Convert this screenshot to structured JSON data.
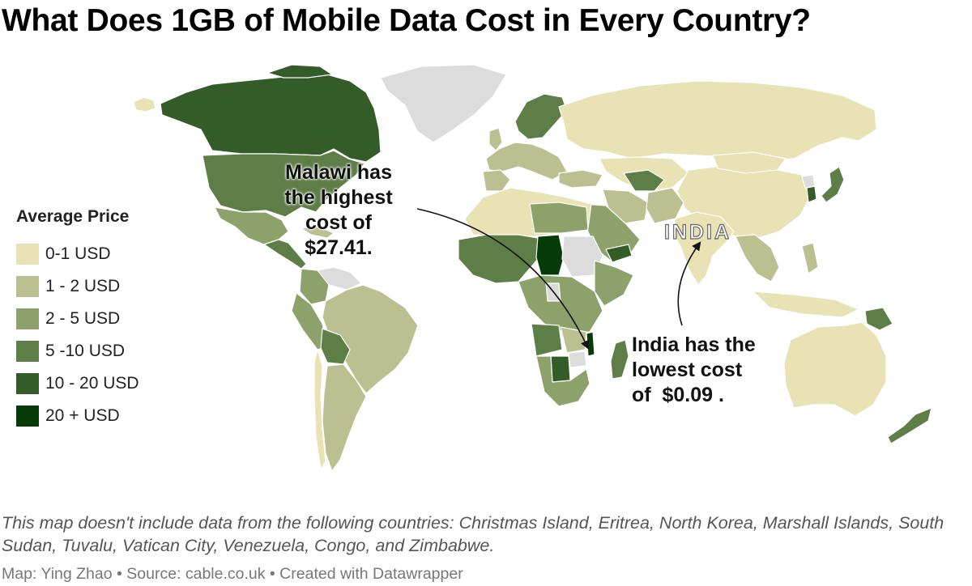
{
  "title": "What Does 1GB of Mobile Data Cost in Every Country?",
  "legend": {
    "title": "Average Price",
    "items": [
      {
        "label": "0-1 USD",
        "color": "#e8e2b4"
      },
      {
        "label": "1 - 2 USD",
        "color": "#bcbf90"
      },
      {
        "label": "2 - 5 USD",
        "color": "#8da16a"
      },
      {
        "label": "5 -10 USD",
        "color": "#5e7e48"
      },
      {
        "label": "10 - 20 USD",
        "color": "#345c28"
      },
      {
        "label": "20 + USD",
        "color": "#063a06"
      }
    ]
  },
  "annotations": {
    "malawi": [
      "Malawi has",
      "the highest",
      "cost of",
      "$27.41."
    ],
    "india": [
      "India has the",
      "lowest cost",
      "of  $0.09 ."
    ]
  },
  "map_labels": {
    "india": "INDIA"
  },
  "colors": {
    "no_data": "#dcdcdc",
    "border": "#ffffff"
  },
  "footnote": "This map doesn't include data from the following countries: Christmas Island, Eritrea, North Korea, Marshall Islands, South Sudan, Tuvalu, Vatican City, Venezuela, Congo, and Zimbabwe.",
  "credits": "Map: Ying Zhao • Source: cable.co.uk • Created with Datawrapper"
}
